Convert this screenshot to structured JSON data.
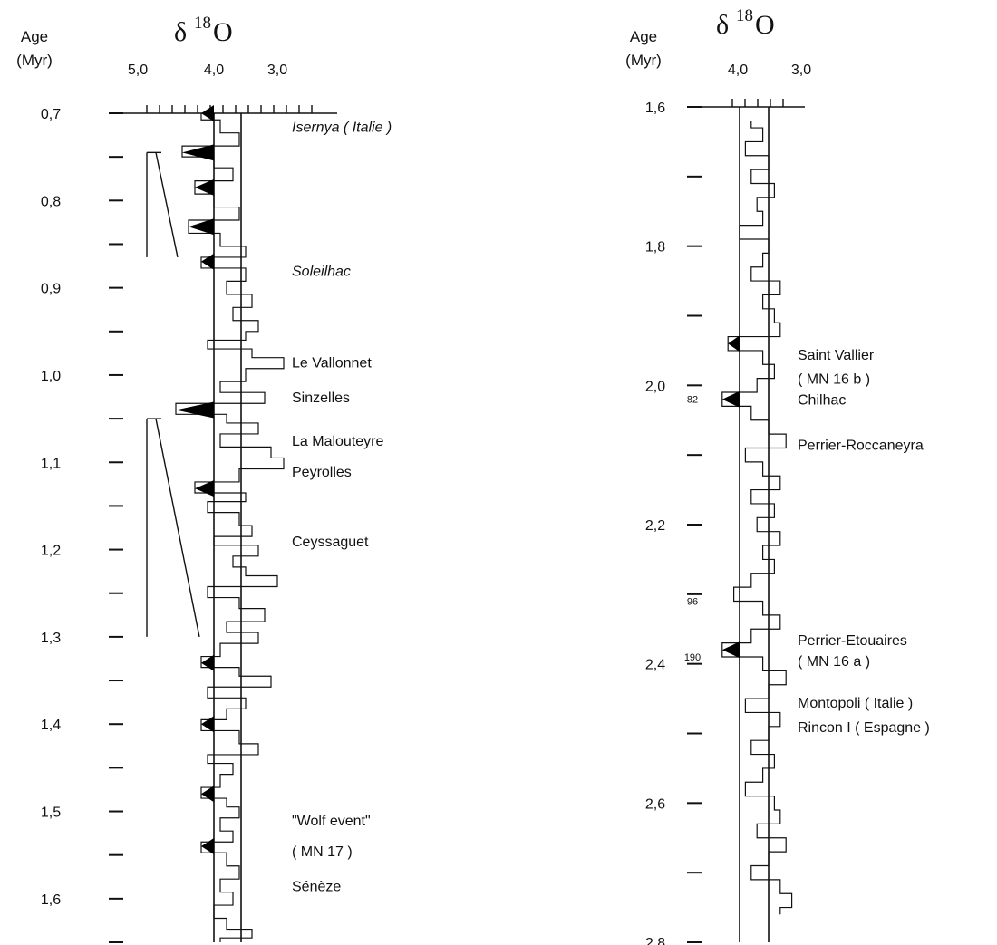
{
  "chart_data": [
    {
      "type": "line",
      "header": {
        "age": "Age",
        "unit": "(Myr)",
        "delta": "δ",
        "sup": "18",
        "elem": "O"
      },
      "x_tick_labels": [
        "5,0",
        "4,0",
        "3,0"
      ],
      "x_reference_lines": [
        4.0,
        3.5
      ],
      "ylim": [
        0.7,
        1.65
      ],
      "y_ticks": [
        {
          "v": 0.7,
          "label": "0,7"
        },
        {
          "v": 0.75,
          "label": ""
        },
        {
          "v": 0.8,
          "label": "0,8"
        },
        {
          "v": 0.85,
          "label": ""
        },
        {
          "v": 0.9,
          "label": "0,9"
        },
        {
          "v": 0.95,
          "label": ""
        },
        {
          "v": 1.0,
          "label": "1,0"
        },
        {
          "v": 1.05,
          "label": ""
        },
        {
          "v": 1.1,
          "label": "1,1"
        },
        {
          "v": 1.15,
          "label": ""
        },
        {
          "v": 1.2,
          "label": "1,2"
        },
        {
          "v": 1.25,
          "label": ""
        },
        {
          "v": 1.3,
          "label": "1,3"
        },
        {
          "v": 1.35,
          "label": ""
        },
        {
          "v": 1.4,
          "label": "1,4"
        },
        {
          "v": 1.45,
          "label": ""
        },
        {
          "v": 1.5,
          "label": "1,5"
        },
        {
          "v": 1.55,
          "label": ""
        },
        {
          "v": 1.6,
          "label": "1,6"
        },
        {
          "v": 1.65,
          "label": ""
        }
      ],
      "series": [
        {
          "age": [
            0.7,
            0.715,
            0.73,
            0.745,
            0.755,
            0.77,
            0.785,
            0.8,
            0.815,
            0.83,
            0.845,
            0.86,
            0.87,
            0.885,
            0.9,
            0.915,
            0.93,
            0.945,
            0.955,
            0.965,
            0.975,
            0.985,
            1.0,
            1.015,
            1.025,
            1.04,
            1.05,
            1.06,
            1.075,
            1.09,
            1.1,
            1.115,
            1.13,
            1.14,
            1.15,
            1.165,
            1.18,
            1.19,
            1.2,
            1.215,
            1.225,
            1.235,
            1.25,
            1.26,
            1.275,
            1.29,
            1.3,
            1.315,
            1.33,
            1.34,
            1.35,
            1.365,
            1.375,
            1.39,
            1.4,
            1.415,
            1.43,
            1.44,
            1.45,
            1.465,
            1.48,
            1.49,
            1.5,
            1.515,
            1.53,
            1.54,
            1.555,
            1.57,
            1.585,
            1.6,
            1.615,
            1.63,
            1.64,
            1.65
          ],
          "d18O": [
            4.2,
            3.9,
            3.6,
            4.5,
            4.0,
            3.7,
            4.3,
            4.0,
            3.6,
            4.4,
            3.9,
            3.5,
            4.2,
            3.5,
            3.8,
            3.4,
            3.7,
            3.3,
            3.5,
            4.1,
            3.4,
            2.9,
            3.5,
            3.9,
            3.2,
            4.6,
            3.8,
            3.3,
            3.9,
            3.1,
            2.9,
            3.6,
            4.3,
            3.5,
            4.1,
            3.6,
            3.4,
            4.0,
            3.3,
            3.7,
            3.5,
            3.0,
            4.1,
            3.6,
            3.2,
            3.8,
            3.3,
            3.9,
            4.2,
            3.6,
            3.1,
            4.1,
            3.5,
            3.8,
            4.2,
            3.6,
            3.3,
            4.1,
            3.7,
            3.9,
            4.2,
            3.8,
            3.6,
            3.9,
            3.7,
            4.2,
            3.8,
            3.6,
            3.9,
            3.7,
            4.0,
            3.8,
            3.4,
            3.9
          ]
        }
      ],
      "annotations": [
        {
          "label": "Isernya ( Italie )",
          "age": 0.715,
          "italic": true
        },
        {
          "label": "Soleilhac",
          "age": 0.88,
          "italic": true
        },
        {
          "label": "Le Vallonnet",
          "age": 0.985
        },
        {
          "label": "Sinzelles",
          "age": 1.025
        },
        {
          "label": "La Malouteyre",
          "age": 1.075
        },
        {
          "label": "Peyrolles",
          "age": 1.11
        },
        {
          "label": "Ceyssaguet",
          "age": 1.19
        },
        {
          "label": "\"Wolf event\"",
          "age": 1.51
        },
        {
          "label": "( MN 17 )",
          "age": 1.545
        },
        {
          "label": "Sénèze",
          "age": 1.585
        }
      ]
    },
    {
      "type": "line",
      "header": {
        "age": "Age",
        "unit": "(Myr)",
        "delta": "δ",
        "sup": "18",
        "elem": "O"
      },
      "x_tick_labels": [
        "4,0",
        "3,0"
      ],
      "x_reference_lines": [
        4.0,
        3.5
      ],
      "ylim": [
        1.6,
        2.8
      ],
      "y_ticks": [
        {
          "v": 1.6,
          "label": "1,6"
        },
        {
          "v": 1.7,
          "label": ""
        },
        {
          "v": 1.8,
          "label": "1,8"
        },
        {
          "v": 1.9,
          "label": ""
        },
        {
          "v": 2.0,
          "label": "2,0"
        },
        {
          "v": 2.1,
          "label": ""
        },
        {
          "v": 2.2,
          "label": "2,2"
        },
        {
          "v": 2.3,
          "label": ""
        },
        {
          "v": 2.4,
          "label": "2,4"
        },
        {
          "v": 2.5,
          "label": ""
        },
        {
          "v": 2.6,
          "label": "2,6"
        },
        {
          "v": 2.7,
          "label": ""
        },
        {
          "v": 2.8,
          "label": "2,8"
        }
      ],
      "stage_labels": [
        {
          "label": "82",
          "age": 2.02
        },
        {
          "label": "96",
          "age": 2.31
        },
        {
          "label": "190",
          "age": 2.39
        }
      ],
      "series": [
        {
          "age": [
            1.62,
            1.64,
            1.66,
            1.68,
            1.7,
            1.72,
            1.74,
            1.76,
            1.78,
            1.8,
            1.82,
            1.84,
            1.86,
            1.88,
            1.9,
            1.92,
            1.94,
            1.96,
            1.98,
            2.0,
            2.02,
            2.04,
            2.06,
            2.08,
            2.1,
            2.12,
            2.14,
            2.16,
            2.18,
            2.2,
            2.22,
            2.24,
            2.26,
            2.28,
            2.3,
            2.32,
            2.34,
            2.36,
            2.38,
            2.4,
            2.42,
            2.44,
            2.46,
            2.48,
            2.5,
            2.52,
            2.54,
            2.56,
            2.58,
            2.6,
            2.62,
            2.64,
            2.66,
            2.68,
            2.7,
            2.72,
            2.74,
            2.76
          ],
          "d18O": [
            3.8,
            3.6,
            3.9,
            3.5,
            3.8,
            3.4,
            3.7,
            3.6,
            4.0,
            3.5,
            3.6,
            3.8,
            3.3,
            3.6,
            3.4,
            3.3,
            4.2,
            3.6,
            3.4,
            3.7,
            4.3,
            3.8,
            3.5,
            3.2,
            3.9,
            3.6,
            3.3,
            3.8,
            3.4,
            3.7,
            3.3,
            3.6,
            3.4,
            3.8,
            4.1,
            3.6,
            3.3,
            3.8,
            4.3,
            3.6,
            3.2,
            3.5,
            3.9,
            3.3,
            3.5,
            3.8,
            3.4,
            3.6,
            3.9,
            3.4,
            3.3,
            3.7,
            3.2,
            3.5,
            3.8,
            3.3,
            3.1,
            3.3
          ]
        }
      ],
      "annotations": [
        {
          "label": "Saint Vallier",
          "age": 1.955
        },
        {
          "label": "( MN 16 b )",
          "age": 1.99
        },
        {
          "label": "Chilhac",
          "age": 2.02
        },
        {
          "label": "Perrier-Roccaneyra",
          "age": 2.085
        },
        {
          "label": "Perrier-Etouaires",
          "age": 2.365
        },
        {
          "label": "( MN 16 a )",
          "age": 2.395
        },
        {
          "label": "Montopoli ( Italie )",
          "age": 2.455
        },
        {
          "label": "Rincon I  ( Espagne )",
          "age": 2.49
        }
      ]
    }
  ]
}
